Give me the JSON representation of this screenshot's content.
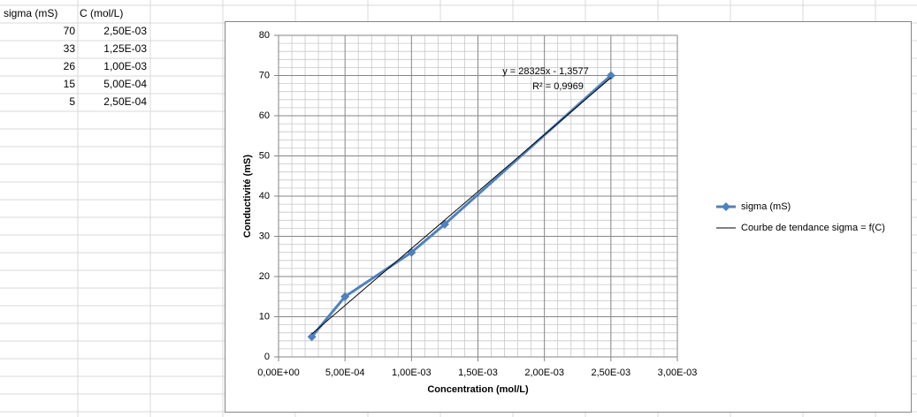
{
  "sheet": {
    "headers": [
      "sigma (mS)",
      "C (mol/L)"
    ],
    "rows": [
      [
        "70",
        "2,50E-03"
      ],
      [
        "33",
        "1,25E-03"
      ],
      [
        "26",
        "1,00E-03"
      ],
      [
        "15",
        "5,00E-04"
      ],
      [
        "5",
        "2,50E-04"
      ]
    ]
  },
  "chart_data": {
    "type": "line",
    "x_label": "Concentration (mol/L)",
    "y_label": "Conductivité (mS)",
    "x": [
      0.0025,
      0.00125,
      0.001,
      0.0005,
      0.00025
    ],
    "series": [
      {
        "name": "sigma (mS)",
        "color": "#4f81bd",
        "values": [
          70,
          33,
          26,
          15,
          5
        ]
      }
    ],
    "trendline": {
      "name": "Courbe de tendance sigma = f(C)",
      "color": "#000000",
      "slope": 28325,
      "intercept": -1.3577,
      "equation": "y = 28325x - 1,3577",
      "r2_label": "R² = 0,9969"
    },
    "xlim": [
      0,
      0.003
    ],
    "xticks": [
      {
        "value": 0,
        "label": "0,00E+00"
      },
      {
        "value": 0.0005,
        "label": "5,00E-04"
      },
      {
        "value": 0.001,
        "label": "1,00E-03"
      },
      {
        "value": 0.0015,
        "label": "1,50E-03"
      },
      {
        "value": 0.002,
        "label": "2,00E-03"
      },
      {
        "value": 0.0025,
        "label": "2,50E-03"
      },
      {
        "value": 0.003,
        "label": "3,00E-03"
      }
    ],
    "ylim": [
      0,
      80
    ],
    "yticks": [
      0,
      10,
      20,
      30,
      40,
      50,
      60,
      70,
      80
    ],
    "grid": true,
    "legend": "right"
  }
}
